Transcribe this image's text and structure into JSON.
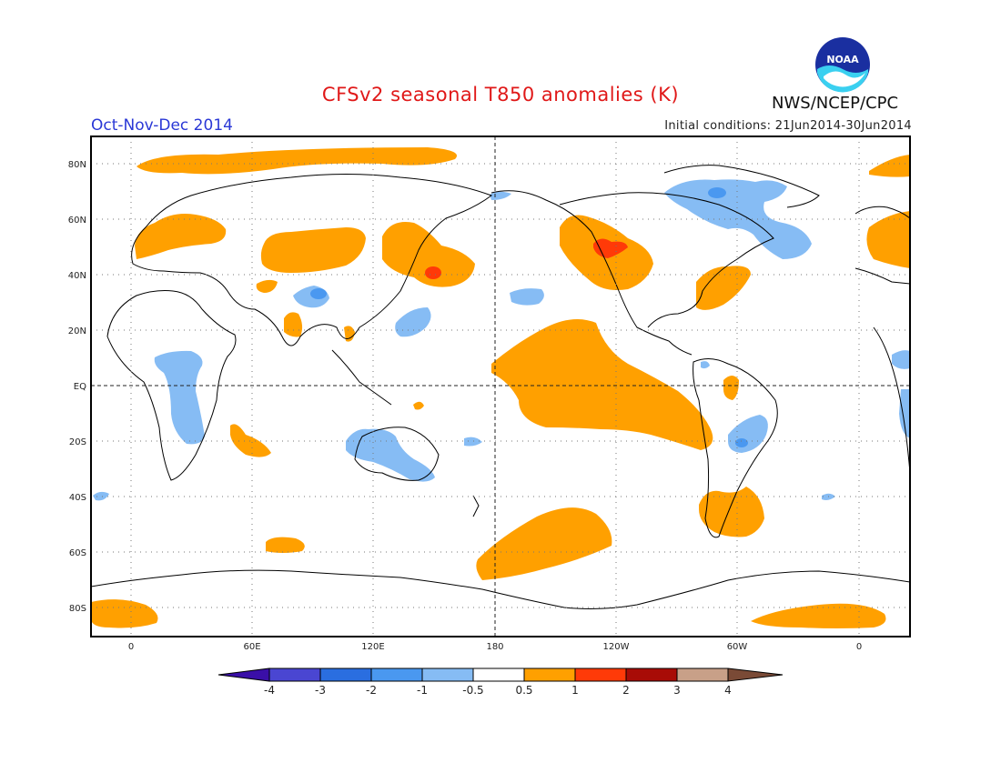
{
  "header": {
    "title": "CFSv2 seasonal T850 anomalies (K)",
    "period": "Oct-Nov-Dec 2014",
    "initial_conditions": "Initial conditions: 21Jun2014-30Jun2014",
    "organization": "NWS/NCEP/CPC",
    "logo_text": "NOAA"
  },
  "axes": {
    "lat_labels": [
      "80N",
      "60N",
      "40N",
      "20N",
      "EQ",
      "20S",
      "40S",
      "60S",
      "80S"
    ],
    "lon_labels": [
      "0",
      "60E",
      "120E",
      "180",
      "120W",
      "60W",
      "0"
    ]
  },
  "colorbar": {
    "labels": [
      "-4",
      "-3",
      "-2",
      "-1",
      "-0.5",
      "0.5",
      "1",
      "2",
      "3",
      "4"
    ],
    "colors": [
      "#3a0fa8",
      "#4a46d2",
      "#2a6ee0",
      "#4a98f0",
      "#86bcf4",
      "#ffffff",
      "#ffa000",
      "#ff3a08",
      "#a80c06",
      "#c8a088",
      "#7a4a36"
    ]
  },
  "colors": {
    "warm": "#ffa000",
    "warm_strong": "#ff3a08",
    "cool": "#86bcf4",
    "cool_strong": "#4a98f0",
    "title": "#e01818",
    "period": "#2a38d6"
  }
}
